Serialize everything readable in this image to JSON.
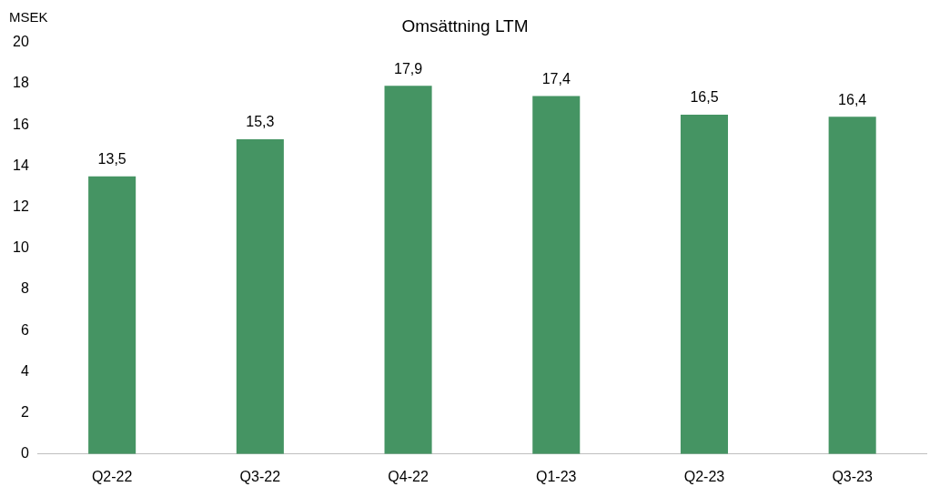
{
  "chart_data": {
    "type": "bar",
    "title": "Omsättning LTM",
    "ylabel": "MSEK",
    "categories": [
      "Q2-22",
      "Q3-22",
      "Q4-22",
      "Q1-23",
      "Q2-23",
      "Q3-23"
    ],
    "values": [
      13.5,
      15.3,
      17.9,
      17.4,
      16.5,
      16.4
    ],
    "value_labels": [
      "13,5",
      "15,3",
      "17,9",
      "17,4",
      "16,5",
      "16,4"
    ],
    "color": "#459463",
    "ylim": [
      0,
      20
    ],
    "yticks": [
      0,
      2,
      4,
      6,
      8,
      10,
      12,
      14,
      16,
      18,
      20
    ],
    "grid": false,
    "legend": false
  }
}
